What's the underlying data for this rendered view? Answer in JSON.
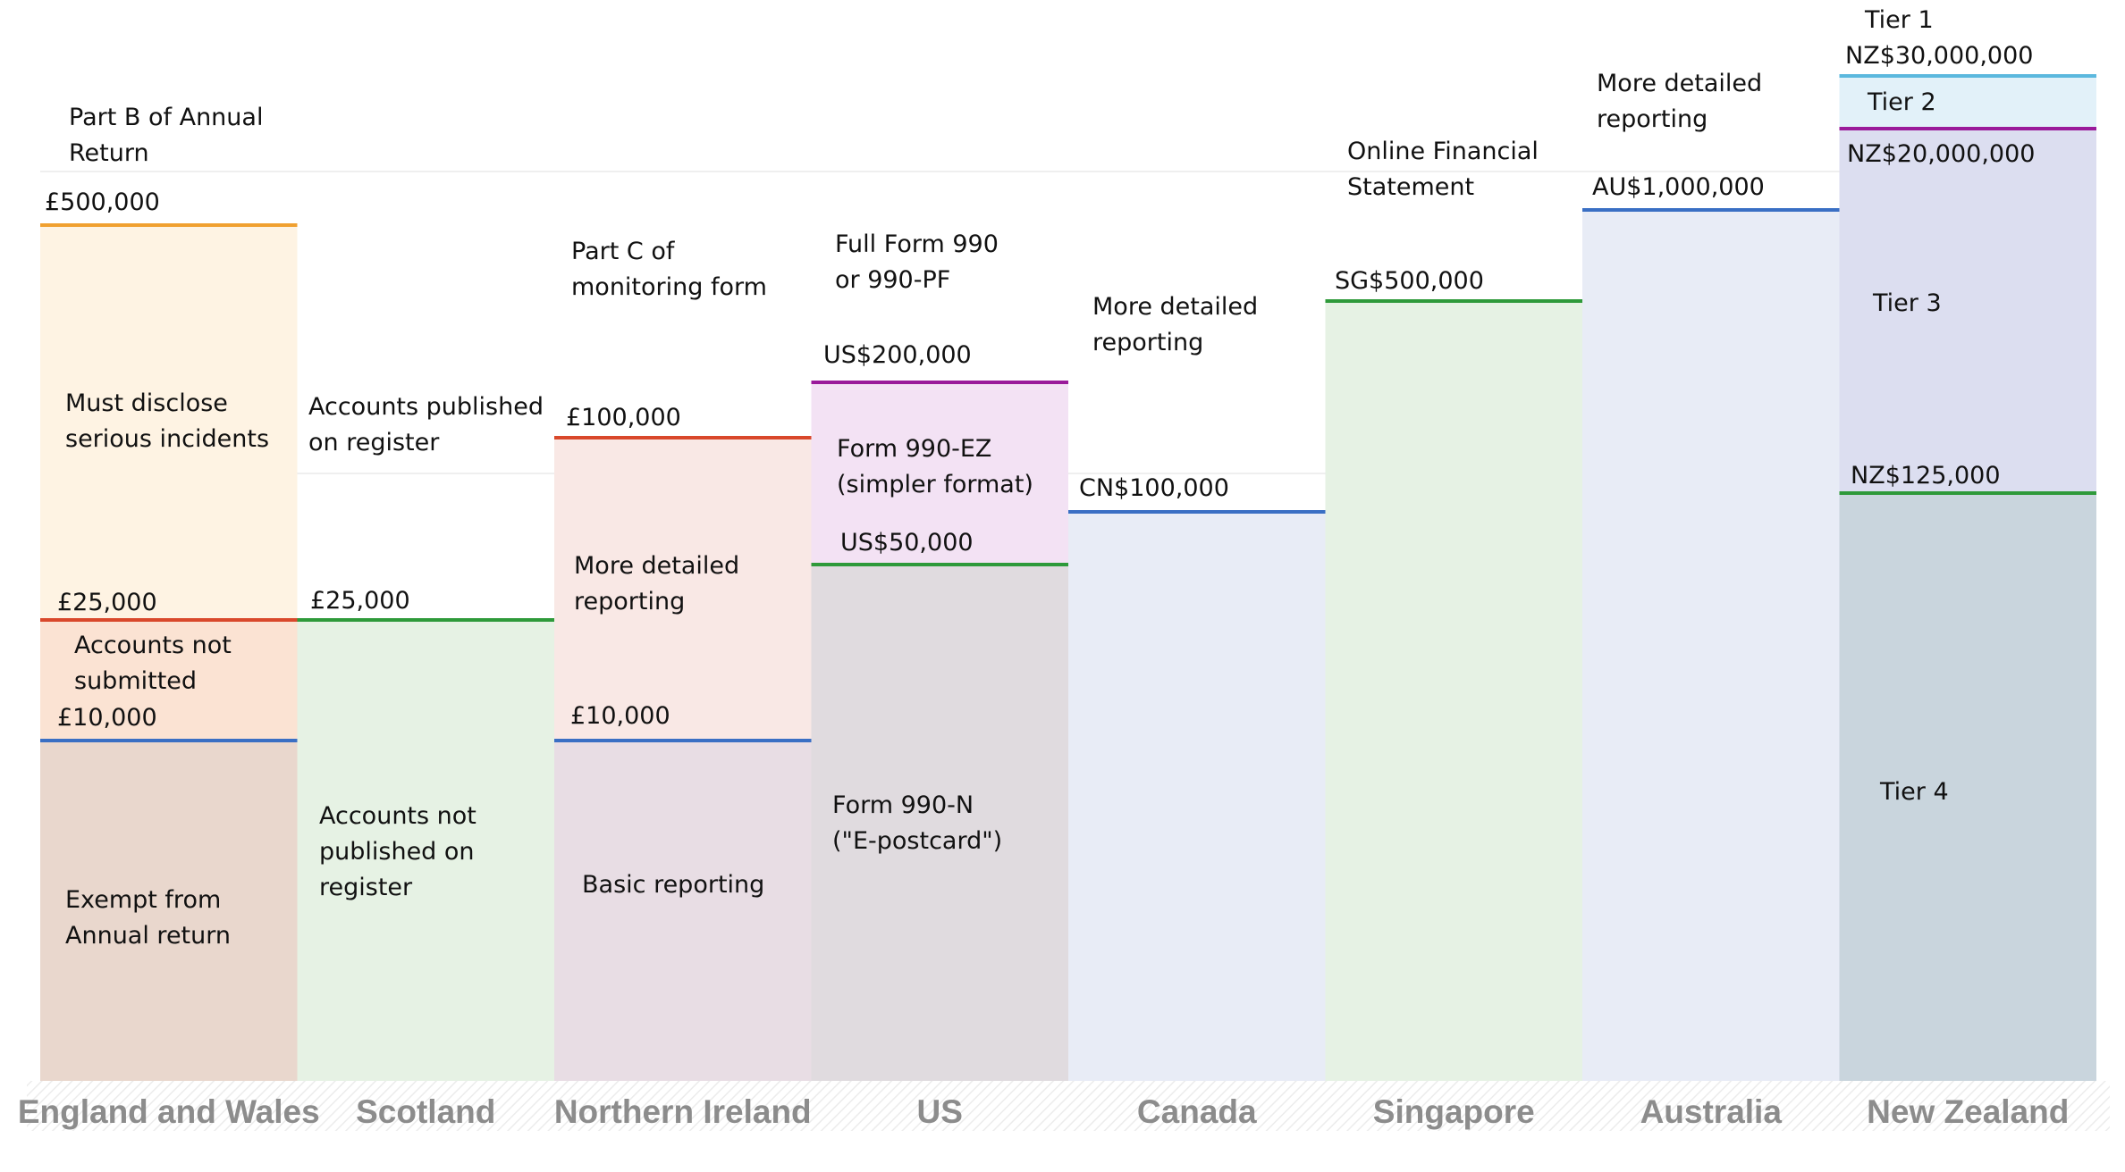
{
  "chart_data": {
    "type": "bar",
    "categories": [
      "England and Wales",
      "Scotland",
      "Northern Ireland",
      "US",
      "Canada",
      "Singapore",
      "Australia",
      "New Zealand"
    ],
    "grid": true,
    "regions": [
      {
        "name": "England and Wales",
        "fill": "#fef3e3",
        "thresholds": [
          {
            "label": "£500,000",
            "color": "#f0a030"
          },
          {
            "label": "£25,000",
            "color": "#d9482b"
          },
          {
            "label": "£10,000",
            "color": "#3a6fc4"
          }
        ],
        "bands": [
          {
            "lines": [
              "Part B of Annual",
              "Return"
            ]
          },
          {
            "lines": [
              "Must disclose",
              "serious incidents"
            ],
            "fill": "#fef3e3"
          },
          {
            "lines": [
              "Accounts not",
              "submitted"
            ],
            "fill": "#fbe3d3"
          },
          {
            "lines": [
              "Exempt from",
              "Annual return"
            ],
            "fill": "#e9d7cd"
          }
        ]
      },
      {
        "name": "Scotland",
        "thresholds": [
          {
            "label": "£25,000",
            "color": "#2e9a3a"
          }
        ],
        "bands": [
          {
            "lines": [
              "Accounts published",
              "on register"
            ]
          },
          {
            "lines": [
              "Accounts not",
              "published on",
              "register"
            ],
            "fill": "#e6f2e4"
          }
        ]
      },
      {
        "name": "Northern Ireland",
        "thresholds": [
          {
            "label": "£100,000",
            "color": "#d9482b"
          },
          {
            "label": "£10,000",
            "color": "#3a6fc4"
          }
        ],
        "bands": [
          {
            "lines": [
              "Part C of",
              "monitoring form"
            ]
          },
          {
            "lines": [
              "More detailed",
              "reporting"
            ],
            "fill": "#f9e8e5"
          },
          {
            "lines": [
              "Basic reporting"
            ],
            "fill": "#e8dde4"
          }
        ]
      },
      {
        "name": "US",
        "thresholds": [
          {
            "label": "US$200,000",
            "color": "#9a1a9a"
          },
          {
            "label": "US$50,000",
            "color": "#2e9a3a"
          }
        ],
        "bands": [
          {
            "lines": [
              "Full Form 990",
              "or 990-PF"
            ]
          },
          {
            "lines": [
              "Form 990-EZ",
              "(simpler format)"
            ],
            "fill": "#f3e2f4"
          },
          {
            "lines": [
              "Form 990-N",
              "(\"E-postcard\")"
            ],
            "fill": "#e0dbdf"
          }
        ]
      },
      {
        "name": "Canada",
        "thresholds": [
          {
            "label": "CN$100,000",
            "color": "#3a6fc4"
          }
        ],
        "bands": [
          {
            "lines": [
              "More detailed",
              "reporting"
            ]
          },
          {
            "lines": [],
            "fill": "#e8ecf6"
          }
        ]
      },
      {
        "name": "Singapore",
        "thresholds": [
          {
            "label": "SG$500,000",
            "color": "#2e9a3a"
          }
        ],
        "bands": [
          {
            "lines": [
              "Online Financial",
              "Statement"
            ]
          },
          {
            "lines": [],
            "fill": "#e6f2e4"
          }
        ]
      },
      {
        "name": "Australia",
        "thresholds": [
          {
            "label": "AU$1,000,000",
            "color": "#3a6fc4"
          }
        ],
        "bands": [
          {
            "lines": [
              "More detailed",
              "reporting"
            ]
          },
          {
            "lines": [],
            "fill": "#e8ecf6"
          }
        ]
      },
      {
        "name": "New Zealand",
        "thresholds": [
          {
            "label": "NZ$30,000,000",
            "color": "#5bb8de"
          },
          {
            "label": "NZ$20,000,000",
            "color": "#9a1a9a"
          },
          {
            "label": "NZ$125,000",
            "color": "#2e9a3a"
          }
        ],
        "bands": [
          {
            "lines": [
              "Tier 1"
            ]
          },
          {
            "lines": [
              "Tier 2"
            ],
            "fill": "#e2f1f9"
          },
          {
            "lines": [
              "Tier 3"
            ],
            "fill": "#dcdef0"
          },
          {
            "lines": [
              "Tier 4"
            ],
            "fill": "#c9d5dd"
          }
        ]
      }
    ]
  }
}
